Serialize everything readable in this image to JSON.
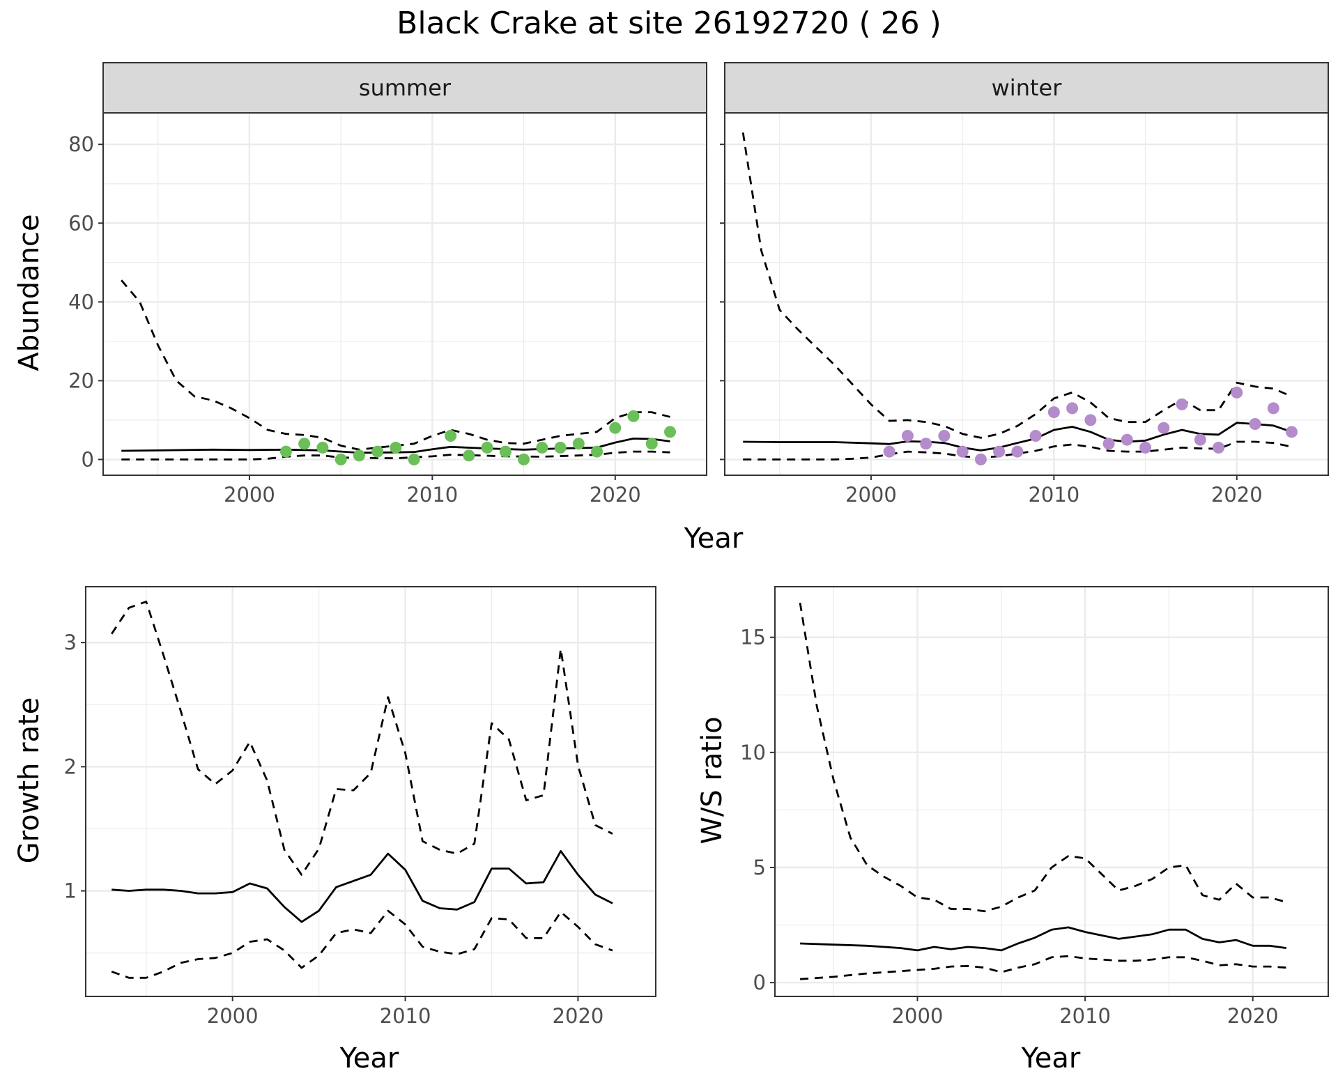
{
  "title": "Black Crake at site 26192720 ( 26 )",
  "colors": {
    "summer_points": "#6bbf59",
    "winter_points": "#b48bcb",
    "lines": "#000000",
    "strip_bg": "#d9d9d9",
    "grid": "#ebebeb"
  },
  "chart_data": [
    {
      "type": "line",
      "panel": "summer",
      "strip": "summer",
      "xlabel": "Year",
      "ylabel": "Abundance",
      "xlim": [
        1992,
        2025
      ],
      "ylim": [
        -4,
        88
      ],
      "xticks": [
        2000,
        2010,
        2020
      ],
      "yticks": [
        0,
        20,
        40,
        60,
        80
      ],
      "grid": true,
      "series": [
        {
          "style": "solid",
          "x": [
            1993,
            1995,
            1998,
            2000,
            2002,
            2004,
            2006,
            2008,
            2009,
            2010,
            2011,
            2013,
            2015,
            2017,
            2019,
            2020,
            2021,
            2022,
            2023
          ],
          "values": [
            2.2,
            2.3,
            2.5,
            2.4,
            2.5,
            2.3,
            1.7,
            1.8,
            1.9,
            2.6,
            3.2,
            2.8,
            2.5,
            2.8,
            3,
            4.3,
            5.3,
            5.2,
            4.6
          ]
        },
        {
          "style": "dashed",
          "x": [
            1993,
            1994,
            1995,
            1996,
            1997,
            1998,
            1999,
            2000,
            2001,
            2002,
            2003,
            2004,
            2005,
            2006,
            2007,
            2008,
            2009,
            2010,
            2011,
            2012,
            2013,
            2014,
            2015,
            2016,
            2017,
            2018,
            2019,
            2020,
            2021,
            2022,
            2023
          ],
          "values": [
            45.5,
            40,
            29,
            20,
            16,
            15,
            13,
            10.5,
            7.5,
            6.5,
            6.2,
            5.5,
            3.5,
            2.5,
            3,
            3.5,
            4,
            6,
            7.5,
            6.5,
            5,
            4.2,
            4,
            5,
            6,
            6.5,
            7,
            10.5,
            12,
            12,
            10.8
          ]
        },
        {
          "style": "dashed",
          "x": [
            1993,
            1995,
            1998,
            2000,
            2001,
            2002,
            2003,
            2004,
            2005,
            2006,
            2008,
            2010,
            2011,
            2012,
            2014,
            2016,
            2018,
            2019,
            2020,
            2021,
            2022,
            2023
          ],
          "values": [
            0,
            0,
            0,
            0,
            0.2,
            0.7,
            1,
            1,
            0.5,
            0.4,
            0.3,
            0.8,
            1.2,
            1.1,
            0.8,
            0.7,
            1,
            1.2,
            1.7,
            2,
            2,
            1.8
          ]
        },
        {
          "style": "points",
          "x": [
            2002,
            2003,
            2004,
            2005,
            2006,
            2007,
            2008,
            2009,
            2011,
            2012,
            2013,
            2014,
            2015,
            2016,
            2017,
            2018,
            2019,
            2020,
            2021,
            2022,
            2023
          ],
          "values": [
            2,
            4,
            3,
            0,
            1,
            2,
            3,
            0,
            6,
            1,
            3,
            2,
            0,
            3,
            3,
            4,
            2,
            8,
            11,
            4,
            7
          ]
        }
      ]
    },
    {
      "type": "line",
      "panel": "winter",
      "strip": "winter",
      "xlabel": "Year",
      "ylabel": "Abundance",
      "xlim": [
        1992,
        2025
      ],
      "ylim": [
        -4,
        88
      ],
      "xticks": [
        2000,
        2010,
        2020
      ],
      "yticks": [
        0,
        20,
        40,
        60,
        80
      ],
      "grid": true,
      "series": [
        {
          "style": "solid",
          "x": [
            1993,
            1995,
            1998,
            2000,
            2001,
            2002,
            2003,
            2004,
            2005,
            2006,
            2007,
            2008,
            2009,
            2010,
            2011,
            2012,
            2013,
            2014,
            2015,
            2016,
            2017,
            2018,
            2019,
            2020,
            2021,
            2022,
            2023
          ],
          "values": [
            4.5,
            4.4,
            4.4,
            4.1,
            3.9,
            4.6,
            4.5,
            4.2,
            3,
            2.3,
            3,
            4.2,
            5.3,
            7.5,
            8.3,
            7,
            5,
            4.5,
            4.8,
            6.3,
            7.5,
            6.5,
            6.3,
            9.3,
            9,
            8.6,
            7
          ]
        },
        {
          "style": "dashed",
          "x": [
            1993,
            1994,
            1995,
            1996,
            1997,
            1998,
            1999,
            2000,
            2001,
            2002,
            2003,
            2004,
            2005,
            2006,
            2007,
            2008,
            2009,
            2010,
            2011,
            2012,
            2013,
            2014,
            2015,
            2016,
            2017,
            2018,
            2019,
            2020,
            2021,
            2022,
            2023
          ],
          "values": [
            83,
            53,
            38,
            33,
            28.5,
            24,
            19,
            14,
            9.8,
            10,
            9.5,
            8.5,
            6.5,
            5.5,
            6.5,
            8.5,
            11.5,
            15.5,
            17,
            14.5,
            10.5,
            9.5,
            9.5,
            12.5,
            15.2,
            12.5,
            12.5,
            19.5,
            18.5,
            18,
            16
          ]
        },
        {
          "style": "dashed",
          "x": [
            1993,
            1995,
            1998,
            1999,
            2000,
            2001,
            2002,
            2003,
            2004,
            2005,
            2006,
            2007,
            2008,
            2009,
            2010,
            2011,
            2012,
            2013,
            2014,
            2015,
            2016,
            2017,
            2018,
            2019,
            2020,
            2021,
            2022,
            2023
          ],
          "values": [
            0,
            0,
            0,
            0.2,
            0.5,
            1.3,
            2,
            1.8,
            1.5,
            0.8,
            0.5,
            0.8,
            1.5,
            2.2,
            3.3,
            3.8,
            3.2,
            2.2,
            2,
            2,
            2.5,
            3,
            2.8,
            2.7,
            4.5,
            4.5,
            4.2,
            3.2
          ]
        },
        {
          "style": "points",
          "x": [
            2001,
            2002,
            2003,
            2004,
            2005,
            2006,
            2007,
            2008,
            2009,
            2010,
            2011,
            2012,
            2013,
            2014,
            2015,
            2016,
            2017,
            2018,
            2019,
            2020,
            2021,
            2022,
            2023
          ],
          "values": [
            2,
            6,
            4,
            6,
            2,
            0,
            2,
            2,
            6,
            12,
            13,
            10,
            4,
            5,
            3,
            8,
            14,
            5,
            3,
            17,
            9,
            13,
            7
          ]
        }
      ]
    },
    {
      "type": "line",
      "panel": "growth",
      "xlabel": "Year",
      "ylabel": "Growth rate",
      "xlim": [
        1991.5,
        2024.5
      ],
      "ylim": [
        0.15,
        3.45
      ],
      "xticks": [
        2000,
        2010,
        2020
      ],
      "yticks": [
        1,
        2,
        3
      ],
      "grid": true,
      "series": [
        {
          "style": "solid",
          "x": [
            1993,
            1994,
            1995,
            1996,
            1997,
            1998,
            1999,
            2000,
            2001,
            2002,
            2003,
            2004,
            2005,
            2006,
            2007,
            2008,
            2009,
            2010,
            2011,
            2012,
            2013,
            2014,
            2015,
            2016,
            2017,
            2018,
            2019,
            2020,
            2021,
            2022
          ],
          "values": [
            1.01,
            1,
            1.01,
            1.01,
            1,
            0.98,
            0.98,
            0.99,
            1.06,
            1.02,
            0.87,
            0.75,
            0.84,
            1.03,
            1.08,
            1.13,
            1.3,
            1.17,
            0.92,
            0.86,
            0.85,
            0.91,
            1.18,
            1.18,
            1.06,
            1.07,
            1.32,
            1.13,
            0.97,
            0.9
          ]
        },
        {
          "style": "dashed",
          "x": [
            1993,
            1994,
            1995,
            1996,
            1997,
            1998,
            1999,
            2000,
            2001,
            2002,
            2003,
            2004,
            2005,
            2006,
            2007,
            2008,
            2009,
            2010,
            2011,
            2012,
            2013,
            2014,
            2015,
            2016,
            2017,
            2018,
            2019,
            2020,
            2021,
            2022
          ],
          "values": [
            3.07,
            3.28,
            3.33,
            2.9,
            2.45,
            1.98,
            1.86,
            1.97,
            2.2,
            1.89,
            1.33,
            1.13,
            1.34,
            1.82,
            1.81,
            1.95,
            2.56,
            2.11,
            1.4,
            1.33,
            1.3,
            1.38,
            2.35,
            2.22,
            1.73,
            1.77,
            2.95,
            2.01,
            1.53,
            1.46
          ]
        },
        {
          "style": "dashed",
          "x": [
            1993,
            1994,
            1995,
            1996,
            1997,
            1998,
            1999,
            2000,
            2001,
            2002,
            2003,
            2004,
            2005,
            2006,
            2007,
            2008,
            2009,
            2010,
            2011,
            2012,
            2013,
            2014,
            2015,
            2016,
            2017,
            2018,
            2019,
            2020,
            2021,
            2022
          ],
          "values": [
            0.35,
            0.3,
            0.3,
            0.35,
            0.42,
            0.45,
            0.46,
            0.5,
            0.59,
            0.61,
            0.52,
            0.38,
            0.48,
            0.66,
            0.69,
            0.66,
            0.84,
            0.73,
            0.55,
            0.51,
            0.49,
            0.53,
            0.78,
            0.77,
            0.62,
            0.62,
            0.83,
            0.71,
            0.57,
            0.52
          ]
        }
      ]
    },
    {
      "type": "line",
      "panel": "ws_ratio",
      "xlabel": "Year",
      "ylabel": "W/S ratio",
      "xlim": [
        1991.5,
        2024.5
      ],
      "ylim": [
        -0.6,
        17.2
      ],
      "xticks": [
        2000,
        2010,
        2020
      ],
      "yticks": [
        0,
        5,
        10,
        15
      ],
      "grid": true,
      "series": [
        {
          "style": "solid",
          "x": [
            1993,
            1995,
            1997,
            1999,
            2000,
            2001,
            2002,
            2003,
            2004,
            2005,
            2006,
            2007,
            2008,
            2009,
            2010,
            2011,
            2012,
            2013,
            2014,
            2015,
            2016,
            2017,
            2018,
            2019,
            2020,
            2021,
            2022
          ],
          "values": [
            1.7,
            1.65,
            1.6,
            1.5,
            1.4,
            1.55,
            1.45,
            1.55,
            1.5,
            1.4,
            1.7,
            1.95,
            2.3,
            2.4,
            2.2,
            2.05,
            1.9,
            2,
            2.1,
            2.3,
            2.3,
            1.9,
            1.75,
            1.85,
            1.6,
            1.6,
            1.5
          ]
        },
        {
          "style": "dashed",
          "x": [
            1993,
            1994,
            1995,
            1996,
            1997,
            1998,
            1999,
            2000,
            2001,
            2002,
            2003,
            2004,
            2005,
            2006,
            2007,
            2008,
            2009,
            2010,
            2011,
            2012,
            2013,
            2014,
            2015,
            2016,
            2017,
            2018,
            2019,
            2020,
            2021,
            2022
          ],
          "values": [
            16.5,
            12,
            8.8,
            6.3,
            5.1,
            4.6,
            4.2,
            3.7,
            3.6,
            3.2,
            3.2,
            3.1,
            3.3,
            3.7,
            4,
            5,
            5.5,
            5.4,
            4.7,
            4,
            4.2,
            4.5,
            5,
            5.1,
            3.8,
            3.6,
            4.3,
            3.7,
            3.7,
            3.5
          ]
        },
        {
          "style": "dashed",
          "x": [
            1993,
            1995,
            1997,
            1999,
            2000,
            2001,
            2002,
            2003,
            2004,
            2005,
            2006,
            2007,
            2008,
            2009,
            2010,
            2011,
            2012,
            2013,
            2014,
            2015,
            2016,
            2017,
            2018,
            2019,
            2020,
            2021,
            2022
          ],
          "values": [
            0.15,
            0.25,
            0.4,
            0.5,
            0.55,
            0.6,
            0.7,
            0.72,
            0.65,
            0.45,
            0.65,
            0.8,
            1.1,
            1.15,
            1.05,
            1,
            0.95,
            0.95,
            1,
            1.1,
            1.1,
            0.95,
            0.75,
            0.8,
            0.7,
            0.7,
            0.65
          ]
        }
      ]
    }
  ]
}
